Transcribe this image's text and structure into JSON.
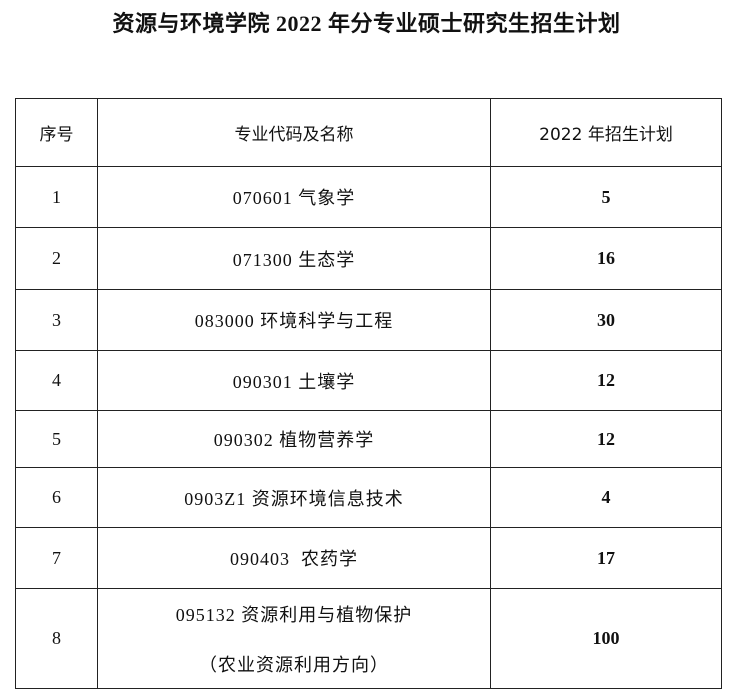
{
  "title": "资源与环境学院 2022 年分专业硕士研究生招生计划",
  "table": {
    "headers": [
      "序号",
      "专业代码及名称",
      "2022 年招生计划"
    ],
    "rows": [
      {
        "no": "1",
        "major": "070601 气象学",
        "plan": "5"
      },
      {
        "no": "2",
        "major": "071300 生态学",
        "plan": "16"
      },
      {
        "no": "3",
        "major": "083000 环境科学与工程",
        "plan": "30"
      },
      {
        "no": "4",
        "major": "090301 土壤学",
        "plan": "12"
      },
      {
        "no": "5",
        "major": "090302 植物营养学",
        "plan": "12"
      },
      {
        "no": "6",
        "major": "0903Z1 资源环境信息技术",
        "plan": "4"
      },
      {
        "no": "7",
        "major": "090403  农药学",
        "plan": "17"
      },
      {
        "no": "8",
        "major": "095132 资源利用与植物保护",
        "major_line2": "（农业资源利用方向）",
        "plan": "100"
      }
    ]
  }
}
